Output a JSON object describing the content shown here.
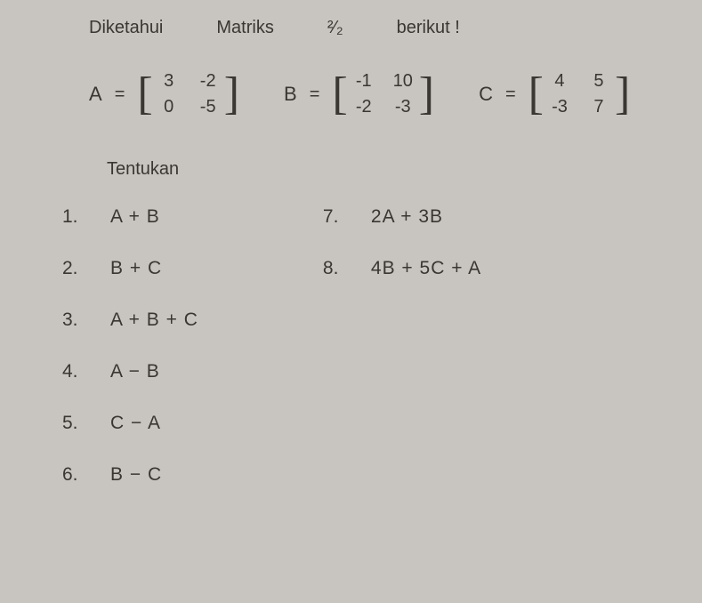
{
  "header": {
    "word1": "Diketahui",
    "word2": "Matriks",
    "sym": "²⁄₂",
    "word3": "berikut !"
  },
  "matrices": {
    "A": {
      "label": "A",
      "eq": "=",
      "cells": [
        "3",
        "-2",
        "0",
        "-5"
      ]
    },
    "B": {
      "label": "B",
      "eq": "=",
      "cells": [
        "-1",
        "10",
        "-2",
        "-3"
      ]
    },
    "C": {
      "label": "C",
      "eq": "=",
      "cells": [
        "4",
        "5",
        "-3",
        "7"
      ]
    }
  },
  "subtitle": "Tentukan",
  "problems_left": [
    {
      "num": "1.",
      "expr": "A + B"
    },
    {
      "num": "2.",
      "expr": "B + C"
    },
    {
      "num": "3.",
      "expr": "A + B + C"
    },
    {
      "num": "4.",
      "expr": "A − B"
    },
    {
      "num": "5.",
      "expr": "C − A"
    },
    {
      "num": "6.",
      "expr": "B − C"
    }
  ],
  "problems_right": [
    {
      "num": "7.",
      "expr": "2A + 3B"
    },
    {
      "num": "8.",
      "expr": "4B + 5C + A"
    }
  ],
  "style": {
    "background": "#c8c5c0",
    "text_color": "#3a3632",
    "font_family": "Comic Sans MS",
    "title_fontsize": 20,
    "matrix_fontsize": 20,
    "problem_fontsize": 21
  }
}
